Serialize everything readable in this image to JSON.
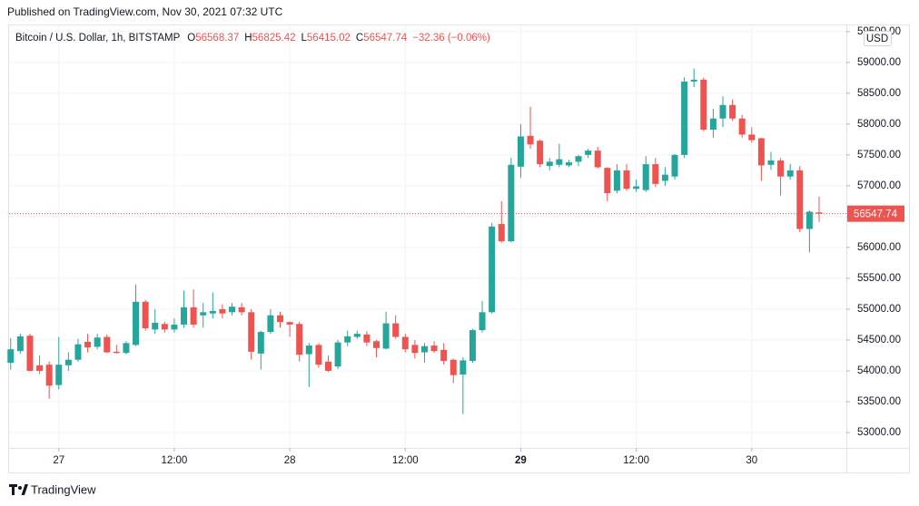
{
  "published": "Published on TradingView.com, Nov 30, 2021 07:32 UTC",
  "footer_brand": "TradingView",
  "chart_data": {
    "type": "candlestick",
    "title": "Bitcoin / U.S. Dollar, 1h, BITSTAMP",
    "ohlc_legend": [
      {
        "label": "O",
        "value": 56568.37
      },
      {
        "label": "H",
        "value": 56825.42
      },
      {
        "label": "L",
        "value": 56415.02
      },
      {
        "label": "C",
        "value": 56547.74
      }
    ],
    "change": "−32.36 (−0.06%)",
    "currency": "USD",
    "up_color": "#26a69a",
    "down_color": "#ef5350",
    "grid": true,
    "xlim": [
      "2021-11-26T18:50",
      "2021-11-30T09:50"
    ],
    "xticks": [
      {
        "value": "2021-11-27T00:00",
        "label": "27"
      },
      {
        "value": "2021-11-27T12:00",
        "label": "12:00"
      },
      {
        "value": "2021-11-28T00:00",
        "label": "28"
      },
      {
        "value": "2021-11-28T12:00",
        "label": "12:00"
      },
      {
        "value": "2021-11-29T00:00",
        "label": "29"
      },
      {
        "value": "2021-11-29T12:00",
        "label": "12:00"
      },
      {
        "value": "2021-11-30T00:00",
        "label": "30"
      }
    ],
    "ylim": [
      52750,
      59600
    ],
    "yticks": [
      {
        "value": 53000,
        "label": "53000.00"
      },
      {
        "value": 53500,
        "label": "53500.00"
      },
      {
        "value": 54000,
        "label": "54000.00"
      },
      {
        "value": 54500,
        "label": "54500.00"
      },
      {
        "value": 55000,
        "label": "55000.00"
      },
      {
        "value": 55500,
        "label": "55500.00"
      },
      {
        "value": 56000,
        "label": "56000.00"
      },
      {
        "value": 56500,
        "label": "56500.00"
      },
      {
        "value": 57000,
        "label": "57000.00"
      },
      {
        "value": 57500,
        "label": "57500.00"
      },
      {
        "value": 58000,
        "label": "58000.00"
      },
      {
        "value": 58500,
        "label": "58500.00"
      },
      {
        "value": 59000,
        "label": "59000.00"
      },
      {
        "value": 59500,
        "label": "59500.00"
      }
    ],
    "candles": [
      {
        "t": "2021-11-26T19:00",
        "o": 54130,
        "h": 54530,
        "l": 54020,
        "c": 54350
      },
      {
        "t": "2021-11-26T20:00",
        "o": 54320,
        "h": 54600,
        "l": 54280,
        "c": 54560
      },
      {
        "t": "2021-11-26T21:00",
        "o": 54570,
        "h": 54600,
        "l": 53990,
        "c": 54000
      },
      {
        "t": "2021-11-26T22:00",
        "o": 54090,
        "h": 54250,
        "l": 53950,
        "c": 54000
      },
      {
        "t": "2021-11-26T23:00",
        "o": 54100,
        "h": 54150,
        "l": 53550,
        "c": 53760
      },
      {
        "t": "2021-11-27T00:00",
        "o": 53770,
        "h": 54550,
        "l": 53700,
        "c": 54100
      },
      {
        "t": "2021-11-27T01:00",
        "o": 54090,
        "h": 54300,
        "l": 54000,
        "c": 54180
      },
      {
        "t": "2021-11-27T02:00",
        "o": 54180,
        "h": 54520,
        "l": 54150,
        "c": 54430
      },
      {
        "t": "2021-11-27T03:00",
        "o": 54470,
        "h": 54600,
        "l": 54300,
        "c": 54380
      },
      {
        "t": "2021-11-27T04:00",
        "o": 54390,
        "h": 54600,
        "l": 54350,
        "c": 54540
      },
      {
        "t": "2021-11-27T05:00",
        "o": 54550,
        "h": 54590,
        "l": 54290,
        "c": 54300
      },
      {
        "t": "2021-11-27T06:00",
        "o": 54310,
        "h": 54420,
        "l": 54280,
        "c": 54290
      },
      {
        "t": "2021-11-27T07:00",
        "o": 54290,
        "h": 54480,
        "l": 54270,
        "c": 54450
      },
      {
        "t": "2021-11-27T08:00",
        "o": 54420,
        "h": 55400,
        "l": 54400,
        "c": 55120
      },
      {
        "t": "2021-11-27T09:00",
        "o": 55120,
        "h": 55150,
        "l": 54650,
        "c": 54690
      },
      {
        "t": "2021-11-27T10:00",
        "o": 54670,
        "h": 55000,
        "l": 54600,
        "c": 54780
      },
      {
        "t": "2021-11-27T11:00",
        "o": 54760,
        "h": 54800,
        "l": 54620,
        "c": 54670
      },
      {
        "t": "2021-11-27T12:00",
        "o": 54670,
        "h": 54850,
        "l": 54620,
        "c": 54750
      },
      {
        "t": "2021-11-27T13:00",
        "o": 54750,
        "h": 55300,
        "l": 54700,
        "c": 55030
      },
      {
        "t": "2021-11-27T14:00",
        "o": 55030,
        "h": 55320,
        "l": 54700,
        "c": 54750
      },
      {
        "t": "2021-11-27T15:00",
        "o": 54900,
        "h": 55100,
        "l": 54700,
        "c": 54950
      },
      {
        "t": "2021-11-27T16:00",
        "o": 54930,
        "h": 55270,
        "l": 54850,
        "c": 54970
      },
      {
        "t": "2021-11-27T17:00",
        "o": 55000,
        "h": 55080,
        "l": 54850,
        "c": 54930
      },
      {
        "t": "2021-11-27T18:00",
        "o": 54950,
        "h": 55100,
        "l": 54900,
        "c": 55040
      },
      {
        "t": "2021-11-27T19:00",
        "o": 55030,
        "h": 55100,
        "l": 54900,
        "c": 54950
      },
      {
        "t": "2021-11-27T20:00",
        "o": 54950,
        "h": 55000,
        "l": 54180,
        "c": 54310
      },
      {
        "t": "2021-11-27T21:00",
        "o": 54280,
        "h": 54650,
        "l": 54020,
        "c": 54630
      },
      {
        "t": "2021-11-27T22:00",
        "o": 54630,
        "h": 55000,
        "l": 54600,
        "c": 54900
      },
      {
        "t": "2021-11-27T23:00",
        "o": 54900,
        "h": 54960,
        "l": 54700,
        "c": 54790
      },
      {
        "t": "2021-11-28T00:00",
        "o": 54790,
        "h": 54800,
        "l": 54550,
        "c": 54750
      },
      {
        "t": "2021-11-28T01:00",
        "o": 54760,
        "h": 54800,
        "l": 54150,
        "c": 54260
      },
      {
        "t": "2021-11-28T02:00",
        "o": 54270,
        "h": 54450,
        "l": 53740,
        "c": 54410
      },
      {
        "t": "2021-11-28T03:00",
        "o": 54420,
        "h": 54450,
        "l": 54050,
        "c": 54100
      },
      {
        "t": "2021-11-28T04:00",
        "o": 54150,
        "h": 54250,
        "l": 53980,
        "c": 54000
      },
      {
        "t": "2021-11-28T05:00",
        "o": 54070,
        "h": 54500,
        "l": 54030,
        "c": 54460
      },
      {
        "t": "2021-11-28T06:00",
        "o": 54460,
        "h": 54650,
        "l": 54400,
        "c": 54560
      },
      {
        "t": "2021-11-28T07:00",
        "o": 54550,
        "h": 54650,
        "l": 54520,
        "c": 54600
      },
      {
        "t": "2021-11-28T08:00",
        "o": 54590,
        "h": 54640,
        "l": 54400,
        "c": 54460
      },
      {
        "t": "2021-11-28T09:00",
        "o": 54480,
        "h": 54500,
        "l": 54220,
        "c": 54370
      },
      {
        "t": "2021-11-28T10:00",
        "o": 54360,
        "h": 54960,
        "l": 54350,
        "c": 54770
      },
      {
        "t": "2021-11-28T11:00",
        "o": 54770,
        "h": 54900,
        "l": 54520,
        "c": 54550
      },
      {
        "t": "2021-11-28T12:00",
        "o": 54550,
        "h": 54600,
        "l": 54300,
        "c": 54350
      },
      {
        "t": "2021-11-28T13:00",
        "o": 54420,
        "h": 54500,
        "l": 54200,
        "c": 54290
      },
      {
        "t": "2021-11-28T14:00",
        "o": 54300,
        "h": 54450,
        "l": 54130,
        "c": 54400
      },
      {
        "t": "2021-11-28T15:00",
        "o": 54410,
        "h": 54480,
        "l": 54290,
        "c": 54320
      },
      {
        "t": "2021-11-28T16:00",
        "o": 54340,
        "h": 54450,
        "l": 54100,
        "c": 54160
      },
      {
        "t": "2021-11-28T17:00",
        "o": 54180,
        "h": 54200,
        "l": 53800,
        "c": 53930
      },
      {
        "t": "2021-11-28T18:00",
        "o": 53940,
        "h": 54220,
        "l": 53300,
        "c": 54170
      },
      {
        "t": "2021-11-28T19:00",
        "o": 54160,
        "h": 54680,
        "l": 54130,
        "c": 54660
      },
      {
        "t": "2021-11-28T20:00",
        "o": 54660,
        "h": 55130,
        "l": 54620,
        "c": 54950
      },
      {
        "t": "2021-11-28T21:00",
        "o": 54950,
        "h": 56400,
        "l": 54930,
        "c": 56340
      },
      {
        "t": "2021-11-28T22:00",
        "o": 56380,
        "h": 56750,
        "l": 56080,
        "c": 56100
      },
      {
        "t": "2021-11-28T23:00",
        "o": 56100,
        "h": 57450,
        "l": 56080,
        "c": 57340
      },
      {
        "t": "2021-11-29T00:00",
        "o": 57310,
        "h": 58000,
        "l": 57130,
        "c": 57800
      },
      {
        "t": "2021-11-29T01:00",
        "o": 57810,
        "h": 58280,
        "l": 57600,
        "c": 57670
      },
      {
        "t": "2021-11-29T02:00",
        "o": 57730,
        "h": 57750,
        "l": 57300,
        "c": 57350
      },
      {
        "t": "2021-11-29T03:00",
        "o": 57320,
        "h": 57450,
        "l": 57250,
        "c": 57390
      },
      {
        "t": "2021-11-29T04:00",
        "o": 57340,
        "h": 57680,
        "l": 57300,
        "c": 57430
      },
      {
        "t": "2021-11-29T05:00",
        "o": 57330,
        "h": 57420,
        "l": 57300,
        "c": 57380
      },
      {
        "t": "2021-11-29T06:00",
        "o": 57390,
        "h": 57500,
        "l": 57320,
        "c": 57480
      },
      {
        "t": "2021-11-29T07:00",
        "o": 57500,
        "h": 57600,
        "l": 57450,
        "c": 57570
      },
      {
        "t": "2021-11-29T08:00",
        "o": 57570,
        "h": 57630,
        "l": 57280,
        "c": 57300
      },
      {
        "t": "2021-11-29T09:00",
        "o": 57290,
        "h": 57300,
        "l": 56750,
        "c": 56880
      },
      {
        "t": "2021-11-29T10:00",
        "o": 56920,
        "h": 57350,
        "l": 56880,
        "c": 57250
      },
      {
        "t": "2021-11-29T11:00",
        "o": 57250,
        "h": 57350,
        "l": 56920,
        "c": 56950
      },
      {
        "t": "2021-11-29T12:00",
        "o": 56950,
        "h": 57100,
        "l": 56900,
        "c": 56990
      },
      {
        "t": "2021-11-29T13:00",
        "o": 56930,
        "h": 57480,
        "l": 56900,
        "c": 57350
      },
      {
        "t": "2021-11-29T14:00",
        "o": 57350,
        "h": 57450,
        "l": 56980,
        "c": 57030
      },
      {
        "t": "2021-11-29T15:00",
        "o": 57080,
        "h": 57300,
        "l": 57000,
        "c": 57180
      },
      {
        "t": "2021-11-29T16:00",
        "o": 57150,
        "h": 57520,
        "l": 57100,
        "c": 57500
      },
      {
        "t": "2021-11-29T17:00",
        "o": 57500,
        "h": 58760,
        "l": 57450,
        "c": 58690
      },
      {
        "t": "2021-11-29T18:00",
        "o": 58690,
        "h": 58900,
        "l": 58600,
        "c": 58720
      },
      {
        "t": "2021-11-29T19:00",
        "o": 58720,
        "h": 58750,
        "l": 57880,
        "c": 57910
      },
      {
        "t": "2021-11-29T20:00",
        "o": 57910,
        "h": 58250,
        "l": 57780,
        "c": 58090
      },
      {
        "t": "2021-11-29T21:00",
        "o": 58090,
        "h": 58450,
        "l": 57950,
        "c": 58310
      },
      {
        "t": "2021-11-29T22:00",
        "o": 58310,
        "h": 58400,
        "l": 58050,
        "c": 58090
      },
      {
        "t": "2021-11-29T23:00",
        "o": 58090,
        "h": 58150,
        "l": 57780,
        "c": 57830
      },
      {
        "t": "2021-11-30T00:00",
        "o": 57830,
        "h": 57950,
        "l": 57700,
        "c": 57740
      },
      {
        "t": "2021-11-30T01:00",
        "o": 57770,
        "h": 57780,
        "l": 57080,
        "c": 57330
      },
      {
        "t": "2021-11-30T02:00",
        "o": 57340,
        "h": 57550,
        "l": 57260,
        "c": 57410
      },
      {
        "t": "2021-11-30T03:00",
        "o": 57410,
        "h": 57450,
        "l": 56840,
        "c": 57150
      },
      {
        "t": "2021-11-30T04:00",
        "o": 57150,
        "h": 57350,
        "l": 57100,
        "c": 57250
      },
      {
        "t": "2021-11-30T05:00",
        "o": 57250,
        "h": 57320,
        "l": 56250,
        "c": 56300
      },
      {
        "t": "2021-11-30T06:00",
        "o": 56300,
        "h": 56600,
        "l": 55920,
        "c": 56580
      },
      {
        "t": "2021-11-30T07:00",
        "o": 56568.37,
        "h": 56825.42,
        "l": 56415.02,
        "c": 56547.74
      }
    ]
  }
}
